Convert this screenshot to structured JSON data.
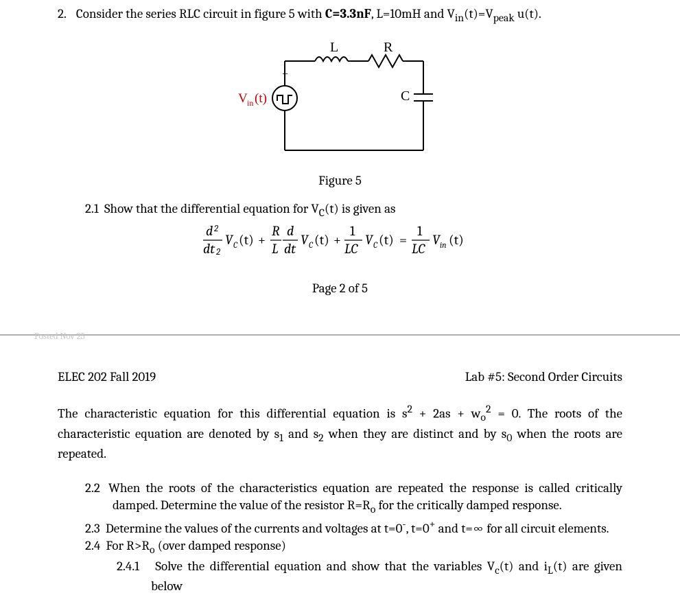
{
  "problem": {
    "number": "2.",
    "intro_html": "Consider the series RLC circuit in figure 5 with <b>C=3.3nF</b>, L=10mH and V<sub>in</sub>(t)=V<sub>peak</sub> u(t)."
  },
  "circuit": {
    "L_label": "L",
    "R_label": "R",
    "C_label": "C",
    "Vin_label": "V<sub>in</sub>(t)",
    "plus": "+",
    "colors": {
      "wire": "#000000",
      "vin": "#c00000",
      "bg": "#ffffff"
    }
  },
  "figure_caption": "Figure 5",
  "q21": {
    "lead": "2.1",
    "text": "Show that the differential equation for V<sub>C</sub>(t) is given as"
  },
  "equation_svg": {
    "terms": {
      "d2_num": "d",
      "d2_sup": "2",
      "d2_den": "dt",
      "d2_den_sup": "2",
      "Vc": "V",
      "Vc_sub": "C",
      "t": "(t)",
      "plus": "+",
      "R": "R",
      "L": "L",
      "d": "d",
      "dt": "dt",
      "one": "1",
      "LC": "LC",
      "eq": "=",
      "Vin": "V",
      "Vin_sub": "in"
    }
  },
  "page_footer": "Page 2 of 5",
  "posted_faint": "Posted Nov 25",
  "header": {
    "left": "ELEC 202 Fall 2019",
    "right": "Lab #5: Second Order Circuits"
  },
  "char_eq_para": "The characteristic equation for this differential equation is s<sup>2</sup> + 2as + w<sub>o</sub><sup>2</sup> = 0. The roots of the characteristic equation are denoted by s<sub>1</sub> and s<sub>2</sub> when they are distinct and by s<sub>0</sub> when the roots are repeated.",
  "q22": {
    "lead": "2.2",
    "text": "When the roots of the characteristics equation are repeated the response is called critically damped. Determine the value of the resistor R=R<sub>o</sub> for the critically damped response."
  },
  "q23": {
    "lead": "2.3",
    "text": "Determine the values of the currents and voltages at t=0<sup>-</sup>, t=0<sup>+</sup> and t=&infin; for all circuit elements."
  },
  "q24": {
    "lead": "2.4",
    "text": "For R&gt;R<sub>o</sub> (over damped response)"
  },
  "q241": {
    "lead": "2.4.1",
    "text": "Solve the differential equation and show that the variables V<sub>c</sub>(t) and i<sub>L</sub>(t) are given below"
  }
}
